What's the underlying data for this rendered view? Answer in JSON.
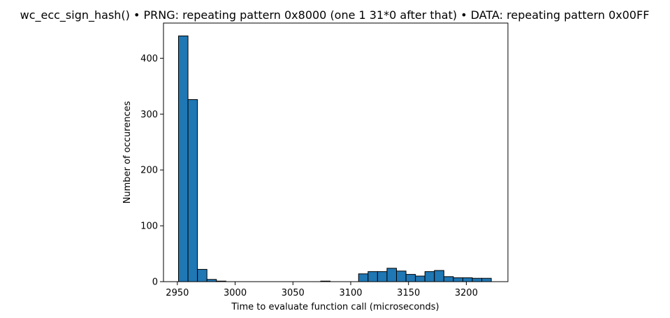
{
  "chart_data": {
    "type": "bar",
    "title": "wc_ecc_sign_hash() • PRNG: repeating pattern 0x8000 (one 1 31*0 after that) • DATA: repeating pattern 0x00FF",
    "xlabel": "Time to evaluate function call (microseconds)",
    "ylabel": "Number of occurences",
    "xlim": [
      2938,
      2236
    ],
    "ylim": [
      0,
      463
    ],
    "xticks": [
      2950,
      3000,
      3050,
      3100,
      3150,
      3200
    ],
    "yticks": [
      0,
      100,
      200,
      300,
      400
    ],
    "grid": false,
    "bar_color": "#1f77b4",
    "edge_color": "#000000",
    "bin_edges": [
      2951,
      2959.2,
      2967.4,
      2975.6,
      2983.8,
      2992,
      3000.2,
      3008.4,
      3016.6,
      3024.8,
      3033,
      3041.2,
      3049.4,
      3057.6,
      3065.8,
      3074,
      3082.2,
      3090.4,
      3098.6,
      3106.8,
      3115,
      3123.2,
      3131.4,
      3139.6,
      3147.8,
      3156,
      3164.2,
      3172.4,
      3180.6,
      3188.8,
      3197,
      3205.2,
      3213.4,
      3221.6
    ],
    "counts": [
      440,
      326,
      22,
      4,
      1,
      0,
      0,
      0,
      0,
      0,
      0,
      0,
      0,
      0,
      0,
      1,
      0,
      0,
      0,
      14,
      18,
      18,
      24,
      19,
      13,
      10,
      18,
      20,
      9,
      7,
      7,
      6,
      6,
      3
    ]
  }
}
